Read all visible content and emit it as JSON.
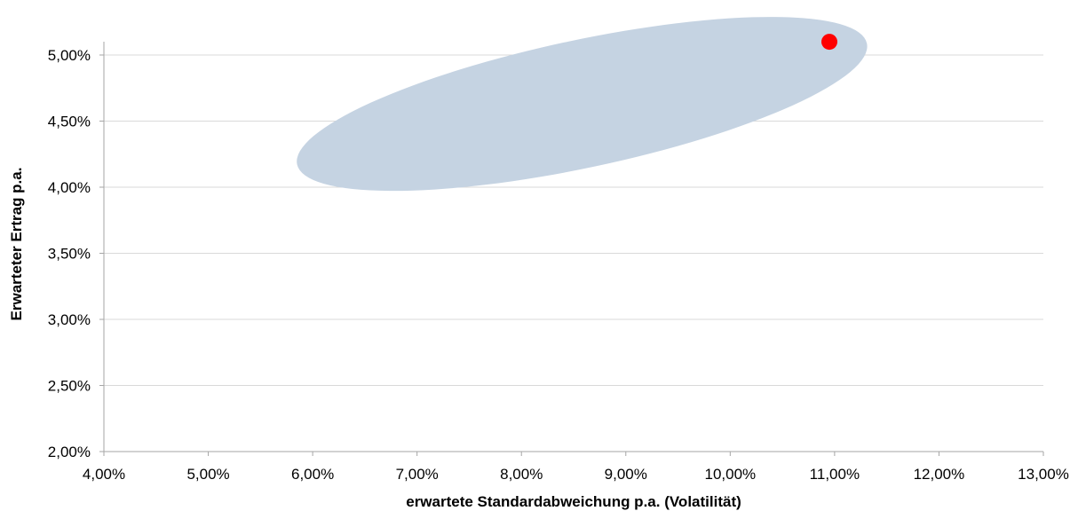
{
  "chart_data": {
    "type": "scatter",
    "xlabel": "erwartete Standardabweichung p.a. (Volatilität)",
    "ylabel": "Erwarteter Ertrag p.a.",
    "xlim": [
      4.0,
      13.0
    ],
    "ylim": [
      2.0,
      5.0
    ],
    "x_ticks": [
      "4,00%",
      "5,00%",
      "6,00%",
      "7,00%",
      "8,00%",
      "9,00%",
      "10,00%",
      "11,00%",
      "12,00%",
      "13,00%"
    ],
    "y_ticks": [
      "2,00%",
      "2,50%",
      "3,00%",
      "3,50%",
      "4,00%",
      "4,50%",
      "5,00%"
    ],
    "grid": "horizontal",
    "points": [
      {
        "x": 10.95,
        "y": 5.1,
        "color": "#ff0000"
      }
    ],
    "region": {
      "shape": "ellipse",
      "center": {
        "x": 8.58,
        "y": 4.63
      },
      "x_extent": [
        5.8,
        11.35
      ],
      "y_extent": [
        4.13,
        5.13
      ],
      "color": "#c5d3e2"
    },
    "colors": {
      "gridline": "#d9d9d9",
      "axis": "#a6a6a6",
      "point": "#ff0000",
      "region": "#c5d3e2"
    }
  }
}
